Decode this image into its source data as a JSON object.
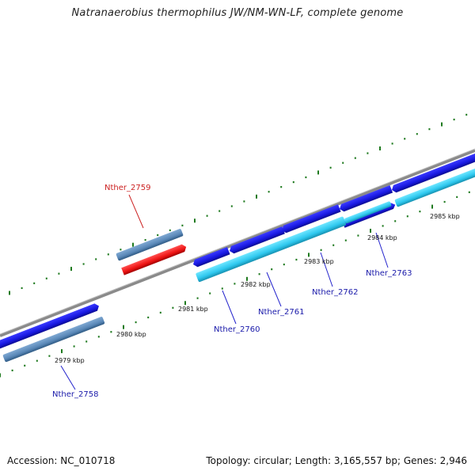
{
  "title": "Natranaerobius thermophilus JW/NM-WN-LF, complete genome",
  "footer": {
    "accession": "Accession: NC_010718",
    "topology": "Topology: circular; Length: 3,165,557 bp; Genes: 2,946"
  },
  "colors": {
    "backbone": "#8a8a8a",
    "tick": "#1f7a1f",
    "gene_forward": "#1c1ce6",
    "gene_reverse": "#33ccf0",
    "gene_other": "#5f8fbf",
    "gene_highlight": "#f01818",
    "label_blue": "#1a1aaa",
    "label_red": "#cc2222"
  },
  "kbp_labels": [
    "2979 kbp",
    "2980 kbp",
    "2981 kbp",
    "2982 kbp",
    "2983 kbp",
    "2984 kbp",
    "2985 kbp"
  ],
  "gene_labels": [
    {
      "text": "Nther_2758",
      "color": "blue"
    },
    {
      "text": "Nther_2759",
      "color": "red"
    },
    {
      "text": "Nther_2760",
      "color": "blue"
    },
    {
      "text": "Nther_2761",
      "color": "blue"
    },
    {
      "text": "Nther_2762",
      "color": "blue"
    },
    {
      "text": "Nther_2763",
      "color": "blue"
    }
  ]
}
